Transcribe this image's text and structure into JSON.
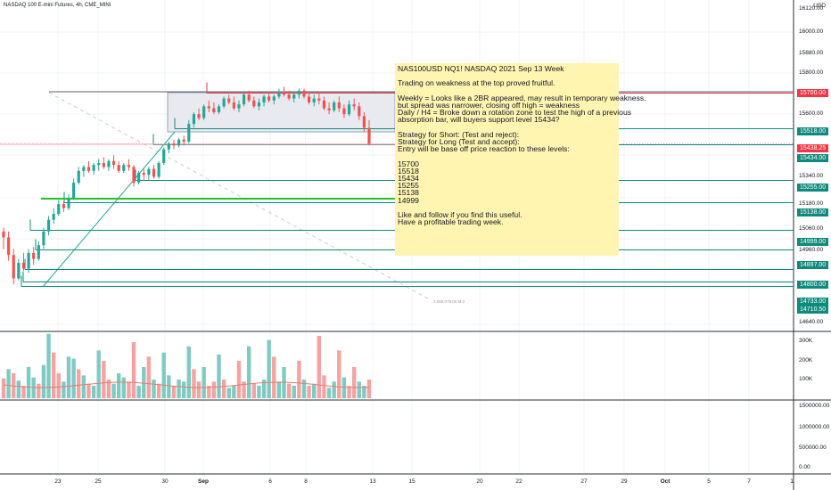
{
  "header": {
    "title": "NASDAQ 100 E-mini Futures, 4h, CME_MINI",
    "currency": "USD"
  },
  "note": {
    "lines": [
      "NAS100USD NQ1! NASDAQ 2021 Sep 13 Week",
      "",
      "Trading on weakness at the top proved fruitful.",
      "",
      "Weekly = Looks like a 2BR appeared, may result in temporary weakness.",
      "but spread was narrower, closing off high = weakness",
      "Daily / H4 = Broke down a rotation zone to test the high of a previous",
      "absorption bar, will buyers support level 15434?",
      "",
      "Strategy for Short: (Test and reject):",
      "Strategy for Long (Test and accept):",
      "Entry will be base off price reaction to these levels:",
      "",
      "15700",
      "15518",
      "15434",
      "15255",
      "15138",
      "14999",
      "",
      "Like and follow if you find this useful.",
      "Have a profitable trading week."
    ]
  },
  "colors": {
    "up": "#26a69a",
    "down": "#ef5350",
    "level": "#0e8a7c",
    "green_line": "#22c522",
    "red_line": "#f23645",
    "zone_fill": "#e8eaf0",
    "grid": "#f0f3fa"
  },
  "chart_data": {
    "type": "candlestick",
    "title": "NASDAQ 100 E-mini Futures, 4h, CME_MINI",
    "price_axis": {
      "ticks": [
        "16120.00",
        "16000.00",
        "15880.00",
        "15800.00",
        "15700.00",
        "15600.00",
        "15518.00",
        "15438.25",
        "15434.00",
        "15340.00",
        "15255.00",
        "15180.00",
        "15138.00",
        "15060.00",
        "14999.00",
        "14960.00",
        "14897.00",
        "14800.00",
        "14733.00",
        "14710.50",
        "14640.00"
      ]
    },
    "price_levels": [
      {
        "value": 15700.0,
        "label": "15700.00",
        "color": "#f23645"
      },
      {
        "value": 15518.0,
        "label": "15518.00",
        "color": "#0e8a7c"
      },
      {
        "value": 15438.25,
        "label": "15438.25",
        "color": "#f23645"
      },
      {
        "value": 15434.0,
        "label": "15434.00",
        "color": "#0e8a7c"
      },
      {
        "value": 15255.0,
        "label": "15255.00",
        "color": "#0e8a7c"
      },
      {
        "value": 15138.0,
        "label": "15138.00",
        "color": "#0e8a7c"
      },
      {
        "value": 14999.0,
        "label": "14999.00",
        "color": "#0e8a7c"
      },
      {
        "value": 14897.0,
        "label": "14897.00",
        "color": "#0e8a7c"
      },
      {
        "value": 14800.0,
        "label": "14800.00",
        "color": "#0e8a7c"
      },
      {
        "value": 14733.0,
        "label": "14733.00",
        "color": "#0e8a7c"
      },
      {
        "value": 14710.5,
        "label": "14710.50",
        "color": "#0e8a7c"
      }
    ],
    "time_axis": [
      "23",
      "25",
      "30",
      "Sep",
      "6",
      "8",
      "13",
      "15",
      "20",
      "22",
      "27",
      "29",
      "Oct",
      "5",
      "7",
      "1"
    ],
    "volume_axis": [
      "300K",
      "200K",
      "100K"
    ],
    "indicator_axis": [
      "1500000.00",
      "1000000.00",
      "500000.00",
      "0.00"
    ],
    "small_label": "3,069,079.00 M-2",
    "candles": [
      [
        14990,
        15010,
        14900,
        14960
      ],
      [
        14960,
        14990,
        14840,
        14870
      ],
      [
        14870,
        14900,
        14720,
        14750
      ],
      [
        14750,
        14850,
        14740,
        14830
      ],
      [
        14830,
        14880,
        14790,
        14800
      ],
      [
        14800,
        14900,
        14780,
        14880
      ],
      [
        14880,
        14910,
        14820,
        14850
      ],
      [
        14850,
        14940,
        14840,
        14920
      ],
      [
        14920,
        15010,
        14900,
        14990
      ],
      [
        14990,
        15070,
        14970,
        15050
      ],
      [
        15050,
        15110,
        15030,
        15080
      ],
      [
        15080,
        15150,
        15070,
        15130
      ],
      [
        15130,
        15145,
        15090,
        15110
      ],
      [
        15110,
        15180,
        15100,
        15160
      ],
      [
        15160,
        15260,
        15150,
        15240
      ],
      [
        15240,
        15320,
        15230,
        15300
      ],
      [
        15300,
        15330,
        15270,
        15320
      ],
      [
        15320,
        15350,
        15290,
        15300
      ],
      [
        15300,
        15340,
        15280,
        15330
      ],
      [
        15330,
        15360,
        15300,
        15340
      ],
      [
        15340,
        15370,
        15310,
        15320
      ],
      [
        15320,
        15360,
        15300,
        15350
      ],
      [
        15350,
        15380,
        15310,
        15330
      ],
      [
        15330,
        15350,
        15290,
        15300
      ],
      [
        15300,
        15340,
        15290,
        15330
      ],
      [
        15330,
        15360,
        15300,
        15320
      ],
      [
        15320,
        15330,
        15220,
        15240
      ],
      [
        15240,
        15300,
        15230,
        15290
      ],
      [
        15290,
        15310,
        15250,
        15280
      ],
      [
        15280,
        15320,
        15250,
        15310
      ],
      [
        15310,
        15330,
        15260,
        15270
      ],
      [
        15270,
        15350,
        15260,
        15340
      ],
      [
        15340,
        15420,
        15330,
        15410
      ],
      [
        15410,
        15450,
        15390,
        15440
      ],
      [
        15440,
        15460,
        15410,
        15430
      ],
      [
        15430,
        15470,
        15420,
        15460
      ],
      [
        15460,
        15480,
        15430,
        15450
      ],
      [
        15450,
        15560,
        15440,
        15540
      ],
      [
        15540,
        15600,
        15520,
        15590
      ],
      [
        15590,
        15620,
        15560,
        15570
      ],
      [
        15570,
        15640,
        15560,
        15630
      ],
      [
        15630,
        15660,
        15600,
        15620
      ],
      [
        15620,
        15650,
        15590,
        15600
      ],
      [
        15600,
        15640,
        15590,
        15630
      ],
      [
        15630,
        15680,
        15620,
        15670
      ],
      [
        15670,
        15690,
        15640,
        15650
      ],
      [
        15650,
        15680,
        15610,
        15620
      ],
      [
        15620,
        15660,
        15600,
        15640
      ],
      [
        15640,
        15700,
        15630,
        15690
      ],
      [
        15690,
        15710,
        15650,
        15660
      ],
      [
        15660,
        15680,
        15620,
        15630
      ],
      [
        15630,
        15670,
        15610,
        15650
      ],
      [
        15650,
        15690,
        15630,
        15680
      ],
      [
        15680,
        15700,
        15650,
        15660
      ],
      [
        15660,
        15690,
        15640,
        15680
      ],
      [
        15680,
        15720,
        15670,
        15700
      ],
      [
        15700,
        15730,
        15680,
        15690
      ],
      [
        15690,
        15710,
        15660,
        15670
      ],
      [
        15670,
        15700,
        15650,
        15690
      ],
      [
        15690,
        15720,
        15670,
        15710
      ],
      [
        15710,
        15720,
        15670,
        15680
      ],
      [
        15680,
        15700,
        15640,
        15650
      ],
      [
        15650,
        15690,
        15630,
        15670
      ],
      [
        15670,
        15700,
        15640,
        15660
      ],
      [
        15660,
        15680,
        15610,
        15620
      ],
      [
        15620,
        15650,
        15590,
        15610
      ],
      [
        15610,
        15660,
        15600,
        15650
      ],
      [
        15650,
        15680,
        15600,
        15620
      ],
      [
        15620,
        15640,
        15570,
        15590
      ],
      [
        15590,
        15660,
        15580,
        15640
      ],
      [
        15640,
        15670,
        15610,
        15630
      ],
      [
        15630,
        15650,
        15560,
        15580
      ],
      [
        15580,
        15600,
        15500,
        15520
      ],
      [
        15520,
        15560,
        15430,
        15438
      ]
    ],
    "volume": [
      [
        95,
        "down"
      ],
      [
        140,
        "up"
      ],
      [
        120,
        "down"
      ],
      [
        85,
        "up"
      ],
      [
        60,
        "down"
      ],
      [
        150,
        "up"
      ],
      [
        100,
        "up"
      ],
      [
        70,
        "down"
      ],
      [
        160,
        "up"
      ],
      [
        310,
        "up"
      ],
      [
        220,
        "down"
      ],
      [
        120,
        "down"
      ],
      [
        80,
        "up"
      ],
      [
        200,
        "up"
      ],
      [
        190,
        "up"
      ],
      [
        140,
        "down"
      ],
      [
        110,
        "up"
      ],
      [
        70,
        "down"
      ],
      [
        60,
        "up"
      ],
      [
        230,
        "up"
      ],
      [
        180,
        "down"
      ],
      [
        90,
        "down"
      ],
      [
        70,
        "up"
      ],
      [
        120,
        "up"
      ],
      [
        100,
        "up"
      ],
      [
        80,
        "down"
      ],
      [
        270,
        "down"
      ],
      [
        60,
        "up"
      ],
      [
        150,
        "up"
      ],
      [
        200,
        "down"
      ],
      [
        90,
        "up"
      ],
      [
        70,
        "down"
      ],
      [
        220,
        "up"
      ],
      [
        110,
        "up"
      ],
      [
        60,
        "down"
      ],
      [
        90,
        "up"
      ],
      [
        80,
        "up"
      ],
      [
        250,
        "up"
      ],
      [
        140,
        "down"
      ],
      [
        80,
        "down"
      ],
      [
        150,
        "up"
      ],
      [
        60,
        "down"
      ],
      [
        80,
        "down"
      ],
      [
        210,
        "up"
      ],
      [
        90,
        "down"
      ],
      [
        50,
        "up"
      ],
      [
        60,
        "up"
      ],
      [
        180,
        "down"
      ],
      [
        80,
        "down"
      ],
      [
        250,
        "up"
      ],
      [
        70,
        "down"
      ],
      [
        60,
        "up"
      ],
      [
        90,
        "up"
      ],
      [
        280,
        "up"
      ],
      [
        200,
        "down"
      ],
      [
        80,
        "up"
      ],
      [
        150,
        "up"
      ],
      [
        70,
        "down"
      ],
      [
        60,
        "up"
      ],
      [
        180,
        "down"
      ],
      [
        90,
        "up"
      ],
      [
        60,
        "down"
      ],
      [
        70,
        "up"
      ],
      [
        300,
        "down"
      ],
      [
        110,
        "down"
      ],
      [
        50,
        "up"
      ],
      [
        80,
        "up"
      ],
      [
        230,
        "down"
      ],
      [
        100,
        "up"
      ],
      [
        60,
        "down"
      ],
      [
        150,
        "down"
      ],
      [
        80,
        "up"
      ],
      [
        60,
        "up"
      ],
      [
        90,
        "down"
      ]
    ]
  }
}
